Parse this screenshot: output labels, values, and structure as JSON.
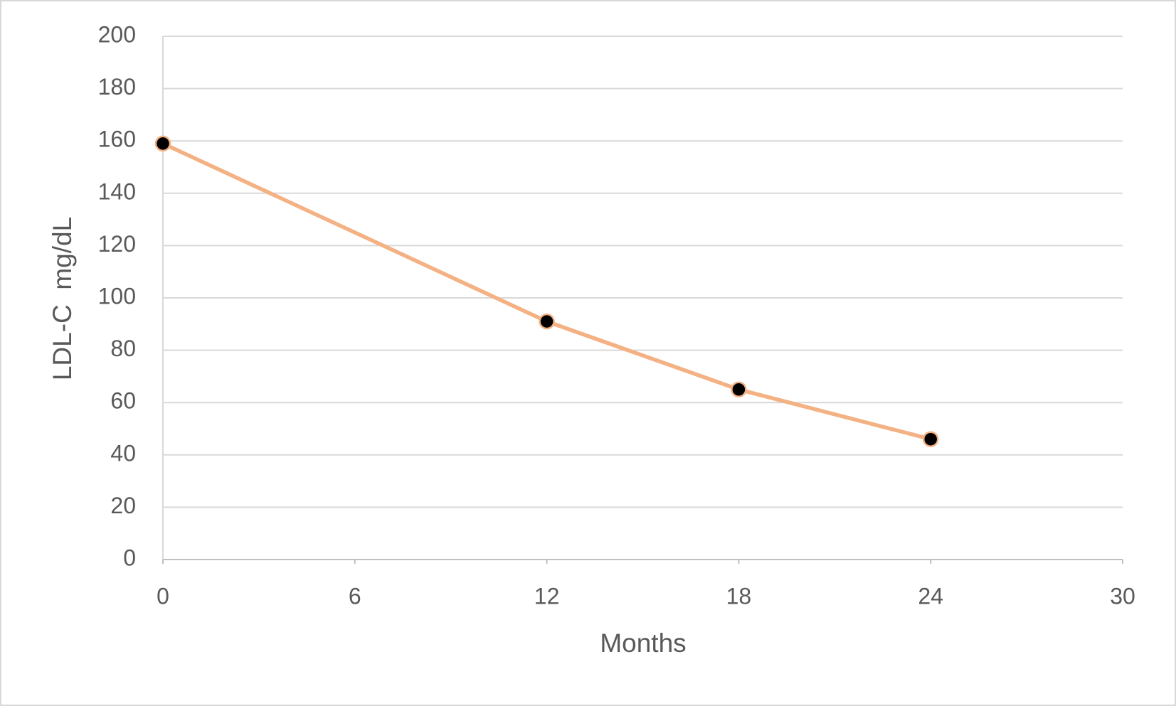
{
  "chart_data": {
    "type": "line",
    "x_label": "Months",
    "y_label": "LDL-C  mg/dL",
    "x": [
      0,
      12,
      18,
      24
    ],
    "series": [
      {
        "name": "LDL-C",
        "color": "#f4b183",
        "marker_color": "#000000",
        "values": [
          159,
          91,
          65,
          46
        ]
      }
    ],
    "xlim": [
      0,
      30
    ],
    "xticks": [
      0,
      6,
      12,
      18,
      24,
      30
    ],
    "ylim": [
      0,
      200
    ],
    "yticks": [
      0,
      20,
      40,
      60,
      80,
      100,
      120,
      140,
      160,
      180,
      200
    ],
    "grid": true
  }
}
